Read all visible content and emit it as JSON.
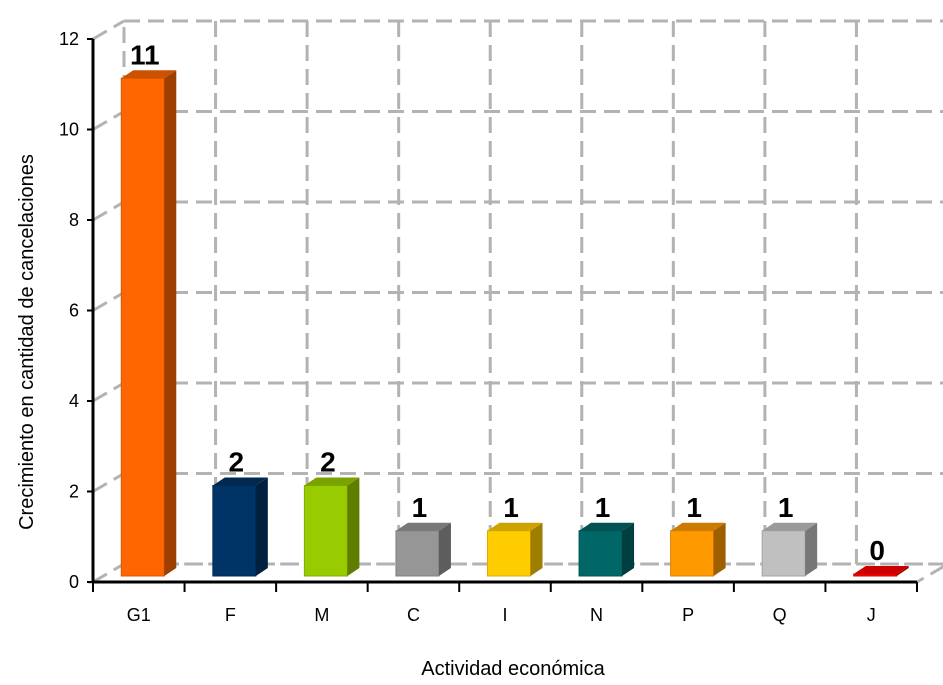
{
  "chart_data": {
    "type": "bar",
    "categories": [
      "G1",
      "F",
      "M",
      "C",
      "I",
      "N",
      "P",
      "Q",
      "J"
    ],
    "values": [
      11,
      2,
      2,
      1,
      1,
      1,
      1,
      1,
      0
    ],
    "data_labels": [
      "11",
      "2",
      "2",
      "1",
      "1",
      "1",
      "1",
      "1",
      "0"
    ],
    "colors": [
      "#ff6600",
      "#003366",
      "#99cc00",
      "#969696",
      "#ffcc00",
      "#006666",
      "#ff9900",
      "#c0c0c0",
      "#ff0000"
    ],
    "title": "",
    "xlabel": "Actividad económica",
    "ylabel": "Crecimiento en cantidad de cancelaciones",
    "ylim": [
      0,
      12
    ],
    "yticks": [
      0,
      2,
      4,
      6,
      8,
      10,
      12
    ],
    "grid": true,
    "legend": "none"
  }
}
